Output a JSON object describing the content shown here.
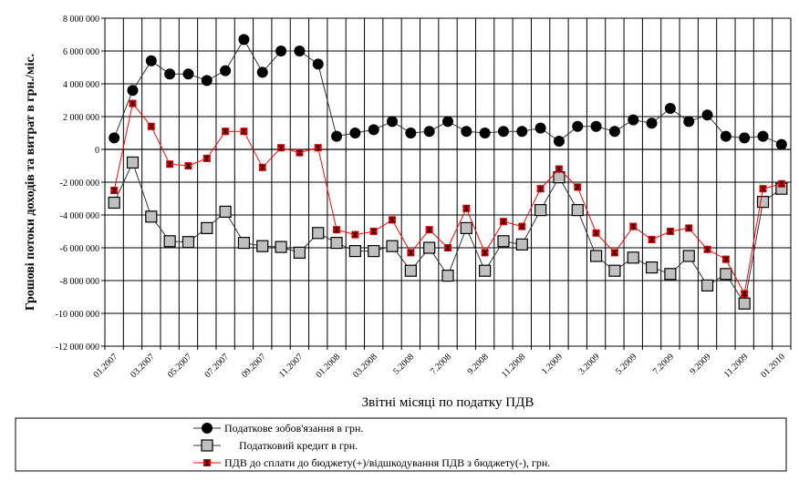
{
  "chart_data": {
    "type": "line",
    "title": "",
    "xlabel": "Звітні місяці по податку ПДВ",
    "ylabel": "Грошові потоки доходів та витрат в грн./міс.",
    "ylim": [
      -12000000,
      8000000
    ],
    "ytick_step": 2000000,
    "yticks": [
      "8 000 000",
      "6 000 000",
      "4 000 000",
      "2 000 000",
      "0",
      "-2 000 000",
      "-4 000 000",
      "-6 000 000",
      "-8 000 000",
      "-10 000 000",
      "-12 000 000"
    ],
    "grid": true,
    "legend_position": "bottom",
    "x": [
      "01.2007",
      "02.2007",
      "03.2007",
      "04.2007",
      "05.2007",
      "06.2007",
      "07.2007",
      "08.2007",
      "09.2007",
      "10.2007",
      "11.2007",
      "12.2007",
      "01.2008",
      "02.2008",
      "03.2008",
      "04.2008",
      "5.2008",
      "6.2008",
      "7.2008",
      "8.2008",
      "9.2008",
      "10.2008",
      "11.2008",
      "12.2008",
      "1.2009",
      "2.2009",
      "3.2009",
      "4.2009",
      "5.2009",
      "6.2009",
      "7.2009",
      "8.2009",
      "9.2009",
      "10.2009",
      "11.2009",
      "12.2009",
      "01.2010"
    ],
    "xtick_labels": [
      "01.2007",
      "03.2007",
      "05.2007",
      "07.2007",
      "09.2007",
      "11.2007",
      "01.2008",
      "03.2008",
      "5.2008",
      "7.2008",
      "9.2008",
      "11.2008",
      "1.2009",
      "3.2009",
      "5.2009",
      "7.2009",
      "9.2009",
      "11.2009",
      "01.2010"
    ],
    "series": [
      {
        "name": "Податкове зобов'язання в грн.",
        "color": "#000000",
        "marker": "circle",
        "values": [
          700000,
          3600000,
          5400000,
          4600000,
          4600000,
          4200000,
          4800000,
          6700000,
          4700000,
          6000000,
          6000000,
          5200000,
          800000,
          1000000,
          1200000,
          1700000,
          1000000,
          1100000,
          1700000,
          1100000,
          1000000,
          1100000,
          1100000,
          1300000,
          500000,
          1400000,
          1400000,
          1100000,
          1800000,
          1600000,
          2500000,
          1700000,
          2100000,
          800000,
          700000,
          800000,
          300000
        ]
      },
      {
        "name": "Податковий кредит в грн.",
        "color": "#000000",
        "marker": "square",
        "values": [
          -3250000,
          -800000,
          -4100000,
          -5600000,
          -5650000,
          -4800000,
          -3800000,
          -5700000,
          -5900000,
          -5950000,
          -6300000,
          -5100000,
          -5700000,
          -6200000,
          -6200000,
          -5900000,
          -7400000,
          -6000000,
          -7700000,
          -4800000,
          -7400000,
          -5600000,
          -5800000,
          -3700000,
          -1700000,
          -3700000,
          -6500000,
          -7400000,
          -6600000,
          -7200000,
          -7600000,
          -6500000,
          -8300000,
          -7600000,
          -9400000,
          -3200000,
          -2400000
        ]
      },
      {
        "name": "ПДВ до сплати до бюджету(+)/відшкодування ПДВ з бюджету(-), грн.",
        "color": "#ff0000",
        "marker": "star",
        "values": [
          -2500000,
          2800000,
          1400000,
          -900000,
          -1000000,
          -550000,
          1100000,
          1100000,
          -1100000,
          100000,
          -200000,
          100000,
          -4900000,
          -5200000,
          -5000000,
          -4300000,
          -6300000,
          -4900000,
          -6000000,
          -3600000,
          -6300000,
          -4400000,
          -4700000,
          -2400000,
          -1200000,
          -2300000,
          -5100000,
          -6300000,
          -4700000,
          -5500000,
          -5000000,
          -4800000,
          -6100000,
          -6700000,
          -8800000,
          -2400000,
          -2100000
        ]
      }
    ]
  }
}
